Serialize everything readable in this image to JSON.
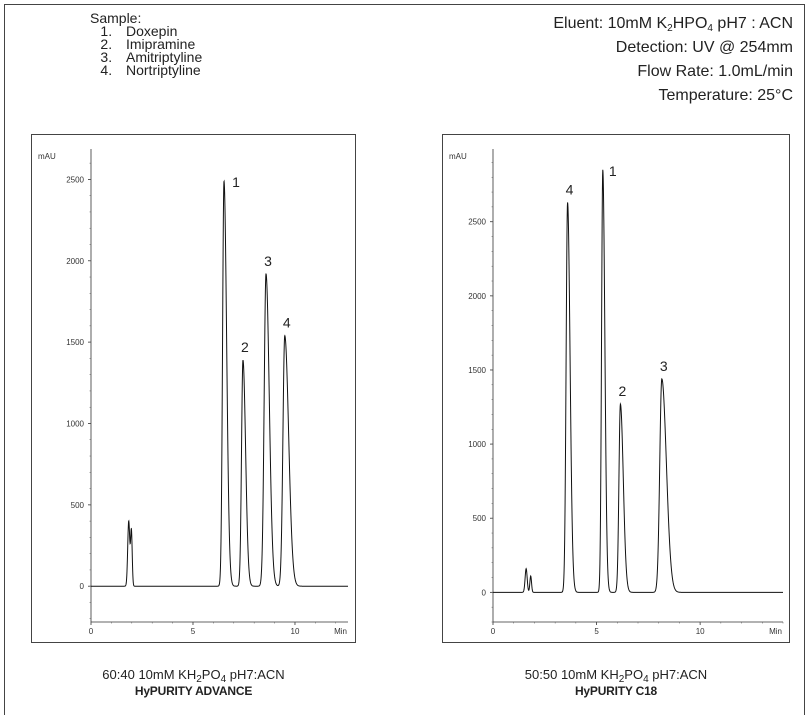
{
  "sample": {
    "heading": "Sample:",
    "items": [
      "Doxepin",
      "Imipramine",
      "Amitriptyline",
      "Nortriptyline"
    ]
  },
  "conditions": {
    "eluent": [
      "Eluent: 10mM K",
      "2",
      "HPO",
      "4",
      " pH7 : ACN"
    ],
    "detection": "Detection: UV @ 254mm",
    "flow": "Flow Rate: 1.0mL/min",
    "temperature": "Temperature: 25°C"
  },
  "chart_data": [
    {
      "type": "line",
      "caption": {
        "line1": [
          "60:40 10mM KH",
          "2",
          "PO",
          "4",
          " pH7:ACN"
        ],
        "line2": "HyPURITY ADVANCE"
      },
      "ylabel": "mAU",
      "xlabel": "Min",
      "xlim": [
        0,
        12.6
      ],
      "ylim": [
        -220,
        2650
      ],
      "xticks": [
        0,
        5,
        10
      ],
      "yticks": [
        0,
        500,
        1000,
        1500,
        2000,
        2500
      ],
      "baseline": 0,
      "peaks": [
        {
          "label": "",
          "rt": 1.85,
          "height": 400,
          "sigma": 0.05,
          "tail": 0.05
        },
        {
          "label": "",
          "rt": 1.98,
          "height": 340,
          "sigma": 0.04,
          "tail": 0.04
        },
        {
          "label": "1",
          "rt": 6.52,
          "height": 2490,
          "sigma": 0.07,
          "tail": 0.13
        },
        {
          "label": "2",
          "rt": 7.45,
          "height": 1390,
          "sigma": 0.07,
          "tail": 0.13
        },
        {
          "label": "3",
          "rt": 8.58,
          "height": 1920,
          "sigma": 0.09,
          "tail": 0.16
        },
        {
          "label": "4",
          "rt": 9.5,
          "height": 1540,
          "sigma": 0.09,
          "tail": 0.19
        }
      ]
    },
    {
      "type": "line",
      "caption": {
        "line1": [
          "50:50 10mM KH",
          "2",
          "PO",
          "4",
          " pH7:ACN"
        ],
        "line2": "HyPURITY C18"
      },
      "ylabel": "mAU",
      "xlabel": "Min",
      "xlim": [
        0,
        14
      ],
      "ylim": [
        -200,
        2950
      ],
      "xticks": [
        0,
        5,
        10
      ],
      "yticks": [
        0,
        500,
        1000,
        1500,
        2000,
        2500
      ],
      "baseline": 0,
      "peaks": [
        {
          "label": "",
          "rt": 1.6,
          "height": 160,
          "sigma": 0.05,
          "tail": 0.05
        },
        {
          "label": "",
          "rt": 1.82,
          "height": 110,
          "sigma": 0.04,
          "tail": 0.04
        },
        {
          "label": "4",
          "rt": 3.6,
          "height": 2630,
          "sigma": 0.07,
          "tail": 0.12
        },
        {
          "label": "1",
          "rt": 5.3,
          "height": 2850,
          "sigma": 0.06,
          "tail": 0.1
        },
        {
          "label": "2",
          "rt": 6.15,
          "height": 1270,
          "sigma": 0.07,
          "tail": 0.14
        },
        {
          "label": "3",
          "rt": 8.15,
          "height": 1440,
          "sigma": 0.1,
          "tail": 0.22
        }
      ]
    }
  ]
}
